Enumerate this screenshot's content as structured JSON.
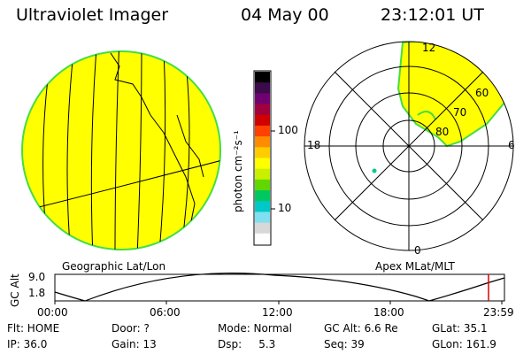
{
  "header": {
    "instrument": "Ultraviolet Imager",
    "date": "04 May 00",
    "time": "23:12:01 UT"
  },
  "colorbar": {
    "unit_label": "photon cm⁻²s⁻¹",
    "ticks": [
      "100",
      "10"
    ],
    "colors": [
      "#000000",
      "#3a0a4a",
      "#700070",
      "#a0003c",
      "#d00000",
      "#ff4000",
      "#ff8c00",
      "#ffcc00",
      "#ffff00",
      "#c8f000",
      "#60d800",
      "#00c860",
      "#00c8c8",
      "#80e0f0",
      "#d8d8d8",
      "#ffffff"
    ]
  },
  "geo_panel": {
    "label": "Geographic Lat/Lon",
    "fill_color": "#ffff00",
    "edge_color": "#44dd44"
  },
  "polar_panel": {
    "label": "Apex MLat/MLT",
    "lat_labels": [
      "60",
      "70",
      "80"
    ],
    "mlt_labels": {
      "top": "12",
      "left": "18",
      "right": "6",
      "bottom": "0"
    }
  },
  "altitude_plot": {
    "ylabel": "GC Alt",
    "yticks": [
      "9.0",
      "1.8"
    ],
    "xticks": [
      "00:00",
      "06:00",
      "12:00",
      "18:00",
      "23:59"
    ],
    "marker_color": "#dd0000"
  },
  "info": {
    "flt": "Flt: HOME",
    "door": "Door: ?",
    "mode": "Mode: Normal",
    "gc_alt": "GC Alt: 6.6 Re",
    "glat": "GLat:  35.1",
    "ip": "IP: 36.0",
    "gain": "Gain: 13",
    "dsp": "Dsp:     5.3",
    "seq": "Seq: 39",
    "glon": "GLon: 161.9"
  }
}
